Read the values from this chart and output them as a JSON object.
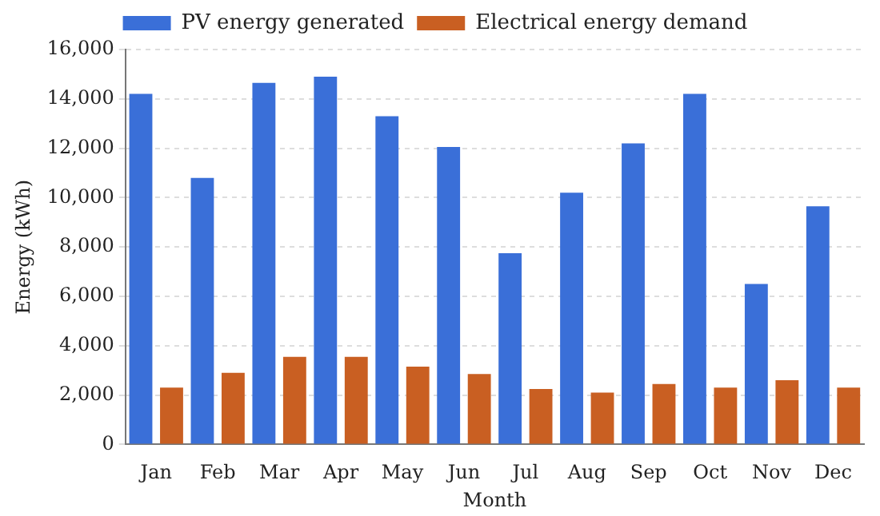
{
  "chart_data": {
    "type": "bar",
    "xlabel": "Month",
    "ylabel": "Energy (kWh)",
    "categories": [
      "Jan",
      "Feb",
      "Mar",
      "Apr",
      "May",
      "Jun",
      "Jul",
      "Aug",
      "Sep",
      "Oct",
      "Nov",
      "Dec"
    ],
    "series": [
      {
        "name": "PV energy generated",
        "color": "#3a6fd8",
        "values": [
          14200,
          10800,
          14650,
          14900,
          13300,
          12050,
          7750,
          10200,
          12200,
          14200,
          6500,
          9650
        ]
      },
      {
        "name": "Electrical energy demand",
        "color": "#c95f22",
        "values": [
          2300,
          2900,
          3550,
          3550,
          3150,
          2850,
          2250,
          2100,
          2450,
          2300,
          2600,
          2300
        ]
      }
    ],
    "ylim": [
      0,
      16000
    ],
    "yticks": [
      0,
      {
        "value": 2000,
        "label": "2,000"
      },
      {
        "value": 4000,
        "label": "4,000"
      },
      {
        "value": 6000,
        "label": "6,000"
      },
      {
        "value": 8000,
        "label": "8,000"
      },
      {
        "value": 10000,
        "label": "10,000"
      },
      {
        "value": 12000,
        "label": "12,000"
      },
      {
        "value": 14000,
        "label": "14,000"
      },
      {
        "value": 16000,
        "label": "16,000"
      }
    ],
    "grid": "y",
    "legend": "top"
  }
}
